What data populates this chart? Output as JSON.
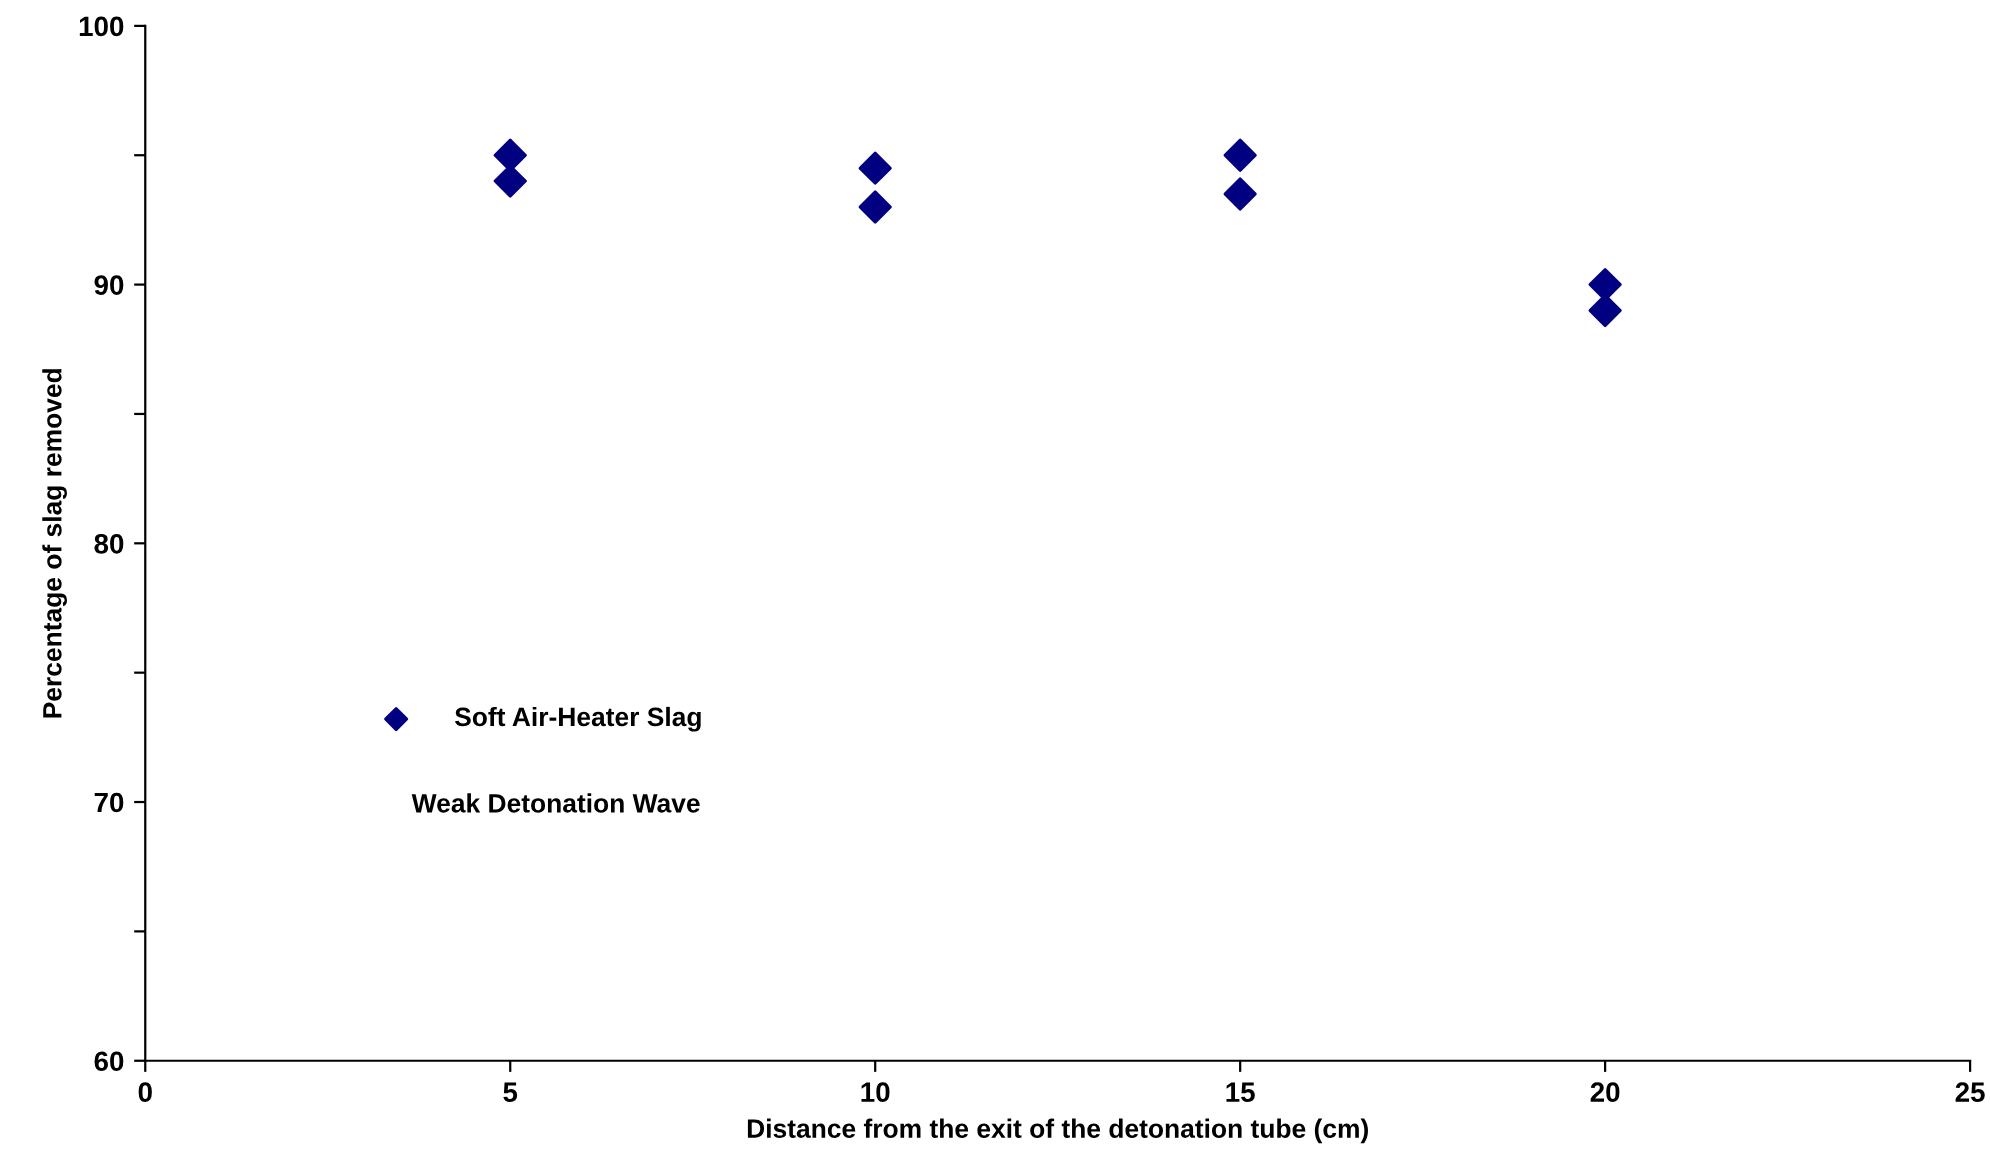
{
  "chart_data": {
    "type": "scatter",
    "xlabel": "Distance from the exit of the detonation tube (cm)",
    "ylabel": "Percentage of slag removed",
    "x": [
      5,
      5,
      10,
      10,
      15,
      15,
      20,
      20
    ],
    "series": [
      {
        "name": "Soft Air-Heater Slag",
        "color": "#000080",
        "values": [
          95,
          94,
          94.5,
          93,
          95,
          93.5,
          90,
          89
        ]
      }
    ],
    "annotations": [
      "Weak Detonation Wave"
    ],
    "xlim": [
      0,
      25
    ],
    "xticks": [
      0,
      5,
      10,
      15,
      20,
      25
    ],
    "ylim": [
      60,
      100
    ],
    "yticks": [
      60,
      {
        "value": 65,
        "label": null
      },
      70,
      {
        "value": 75,
        "label": null
      },
      80,
      {
        "value": 85,
        "label": null
      },
      90,
      {
        "value": 95,
        "label": null
      },
      100
    ],
    "marker": "diamond",
    "grid": false,
    "legend": "left"
  }
}
